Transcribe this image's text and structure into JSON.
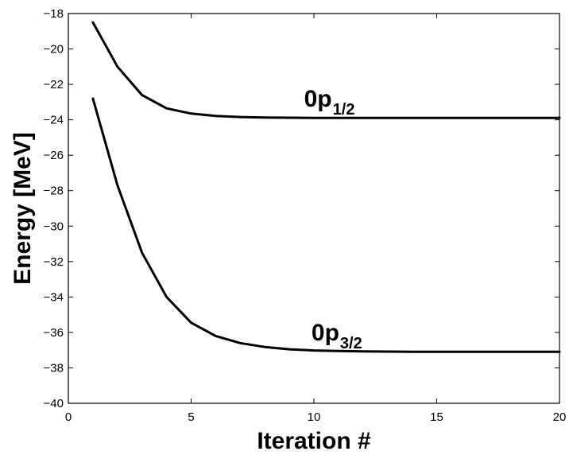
{
  "chart_data": {
    "type": "line",
    "title": "",
    "xlabel": "Iteration #",
    "ylabel": "Energy [MeV]",
    "xlim": [
      0,
      20
    ],
    "ylim": [
      -40,
      -18
    ],
    "xticks": [
      0,
      5,
      10,
      15,
      20
    ],
    "yticks": [
      -40,
      -38,
      -36,
      -34,
      -32,
      -30,
      -28,
      -26,
      -24,
      -22,
      -20,
      -18
    ],
    "grid": false,
    "legend": "none",
    "series": [
      {
        "x": [
          1,
          2,
          3,
          4,
          5,
          6,
          7,
          8,
          9,
          10,
          11,
          12,
          13,
          14,
          15,
          16,
          17,
          18,
          19,
          20
        ],
        "y": [
          -18.5,
          -21.0,
          -22.6,
          -23.35,
          -23.65,
          -23.78,
          -23.84,
          -23.87,
          -23.88,
          -23.89,
          -23.89,
          -23.89,
          -23.89,
          -23.89,
          -23.89,
          -23.89,
          -23.89,
          -23.89,
          -23.89,
          -23.89
        ],
        "color": "#000000"
      },
      {
        "x": [
          1,
          2,
          3,
          4,
          5,
          6,
          7,
          8,
          9,
          10,
          11,
          12,
          13,
          14,
          15,
          16,
          17,
          18,
          19,
          20
        ],
        "y": [
          -22.8,
          -27.7,
          -31.5,
          -34.0,
          -35.45,
          -36.2,
          -36.6,
          -36.82,
          -36.95,
          -37.02,
          -37.05,
          -37.07,
          -37.08,
          -37.09,
          -37.09,
          -37.09,
          -37.09,
          -37.09,
          -37.09,
          -37.09
        ],
        "color": "#000000"
      }
    ],
    "annotations": [
      {
        "main": "0p",
        "sub": "1/2",
        "x": 9.6,
        "y": -23.25
      },
      {
        "main": "0p",
        "sub": "3/2",
        "x": 9.9,
        "y": -36.45
      }
    ]
  }
}
